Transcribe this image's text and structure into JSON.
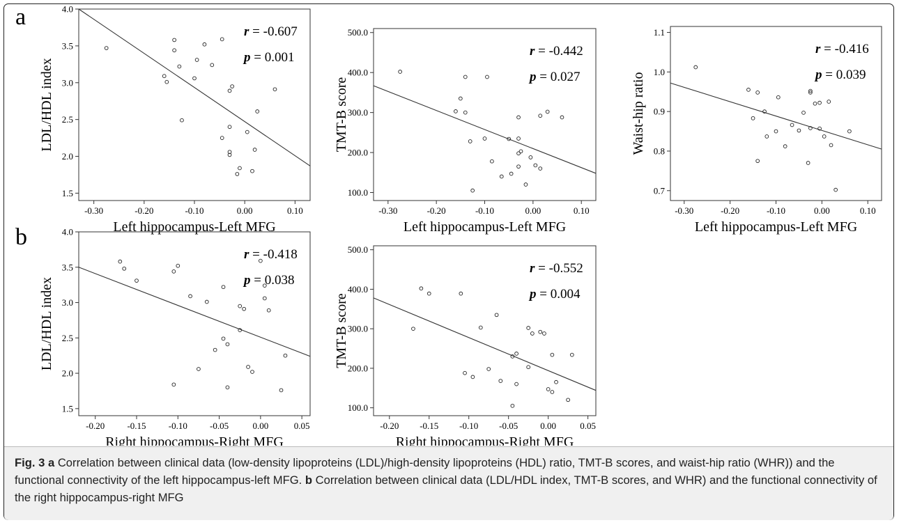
{
  "panels": [
    {
      "letter": "a"
    },
    {
      "letter": "b"
    }
  ],
  "caption": {
    "label": "Fig. 3",
    "a_label": "a",
    "a_text": "Correlation between clinical data (low-density lipoproteins (LDL)/high-density lipoproteins (HDL) ratio, TMT-B scores, and waist-hip ratio (WHR)) and the functional connectivity of the left hippocampus-left MFG.",
    "b_label": "b",
    "b_text": "Correlation between clinical data (LDL/HDL index, TMT-B scores, and WHR) and the functional connectivity of the right hippocampus-right MFG"
  },
  "chart_data": [
    {
      "type": "scatter",
      "xlabel": "Left hippocampus-Left MFG",
      "ylabel": "LDL/HDL index",
      "xlim": [
        -0.33,
        0.13
      ],
      "ylim": [
        1.4,
        4.0
      ],
      "xticks": [
        -0.3,
        -0.2,
        -0.1,
        0.0,
        0.1
      ],
      "xtick_labels": [
        "-0.30",
        "-0.20",
        "-0.10",
        "0.00",
        "0.10"
      ],
      "yticks": [
        1.5,
        2.0,
        2.5,
        3.0,
        3.5,
        4.0
      ],
      "ytick_labels": [
        "1.5",
        "2.0",
        "2.5",
        "3.0",
        "3.5",
        "4.0"
      ],
      "annotations": [
        "r = -0.607",
        "p = 0.001"
      ],
      "fit_line": [
        [
          -0.33,
          4.0
        ],
        [
          0.13,
          1.87
        ]
      ],
      "points": [
        [
          -0.275,
          3.47
        ],
        [
          -0.14,
          3.58
        ],
        [
          -0.14,
          3.44
        ],
        [
          -0.13,
          3.22
        ],
        [
          -0.16,
          3.09
        ],
        [
          -0.155,
          3.01
        ],
        [
          -0.095,
          3.31
        ],
        [
          -0.08,
          3.52
        ],
        [
          -0.045,
          3.59
        ],
        [
          -0.065,
          3.24
        ],
        [
          -0.1,
          3.06
        ],
        [
          -0.03,
          2.89
        ],
        [
          -0.025,
          2.95
        ],
        [
          0.06,
          2.91
        ],
        [
          -0.125,
          2.49
        ],
        [
          0.025,
          2.61
        ],
        [
          -0.03,
          2.4
        ],
        [
          0.005,
          2.33
        ],
        [
          -0.045,
          2.25
        ],
        [
          -0.03,
          2.06
        ],
        [
          -0.03,
          2.02
        ],
        [
          0.02,
          2.09
        ],
        [
          -0.01,
          1.84
        ],
        [
          0.015,
          1.8
        ],
        [
          -0.015,
          1.76
        ]
      ]
    },
    {
      "type": "scatter",
      "xlabel": "Left hippocampus-Left MFG",
      "ylabel": "TMT-B score",
      "xlim": [
        -0.33,
        0.13
      ],
      "ylim": [
        80,
        510
      ],
      "xticks": [
        -0.3,
        -0.2,
        -0.1,
        0.0,
        0.1
      ],
      "xtick_labels": [
        "-0.30",
        "-0.20",
        "-0.10",
        "0.00",
        "0.10"
      ],
      "yticks": [
        100,
        200,
        300,
        400,
        500
      ],
      "ytick_labels": [
        "100.0",
        "200.0",
        "300.0",
        "400.0",
        "500.0"
      ],
      "annotations": [
        "r = -0.442",
        "p = 0.027"
      ],
      "fit_line": [
        [
          -0.33,
          367
        ],
        [
          0.13,
          148
        ]
      ],
      "points": [
        [
          -0.275,
          402
        ],
        [
          -0.14,
          389
        ],
        [
          -0.095,
          389
        ],
        [
          -0.15,
          335
        ],
        [
          -0.16,
          303
        ],
        [
          -0.14,
          300
        ],
        [
          0.03,
          302
        ],
        [
          -0.03,
          288
        ],
        [
          0.015,
          292
        ],
        [
          0.06,
          288
        ],
        [
          -0.03,
          235
        ],
        [
          -0.1,
          235
        ],
        [
          -0.05,
          234
        ],
        [
          -0.13,
          228
        ],
        [
          -0.085,
          178
        ],
        [
          -0.025,
          203
        ],
        [
          -0.03,
          198
        ],
        [
          -0.005,
          188
        ],
        [
          0.005,
          168
        ],
        [
          -0.03,
          165
        ],
        [
          0.015,
          160
        ],
        [
          -0.045,
          147
        ],
        [
          -0.065,
          140
        ],
        [
          -0.015,
          120
        ],
        [
          -0.125,
          105
        ]
      ]
    },
    {
      "type": "scatter",
      "xlabel": "Left hippocampus-Left MFG",
      "ylabel": "Waist-hip ratio",
      "xlim": [
        -0.33,
        0.13
      ],
      "ylim": [
        0.675,
        1.115
      ],
      "xticks": [
        -0.3,
        -0.2,
        -0.1,
        0.0,
        0.1
      ],
      "xtick_labels": [
        "-0.30",
        "-0.20",
        "-0.10",
        "0.00",
        "0.10"
      ],
      "yticks": [
        0.7,
        0.8,
        0.9,
        1.0,
        1.1
      ],
      "ytick_labels": [
        "0.7",
        "0.8",
        "0.9",
        "1.0",
        "1.1"
      ],
      "annotations": [
        "r = -0.416",
        "p = 0.039"
      ],
      "fit_line": [
        [
          -0.33,
          0.972
        ],
        [
          0.13,
          0.805
        ]
      ],
      "points": [
        [
          -0.275,
          1.012
        ],
        [
          -0.16,
          0.955
        ],
        [
          -0.14,
          0.948
        ],
        [
          -0.025,
          0.952
        ],
        [
          -0.025,
          0.948
        ],
        [
          -0.095,
          0.936
        ],
        [
          0.015,
          0.925
        ],
        [
          -0.005,
          0.922
        ],
        [
          -0.015,
          0.92
        ],
        [
          -0.125,
          0.9
        ],
        [
          -0.04,
          0.897
        ],
        [
          -0.15,
          0.883
        ],
        [
          -0.065,
          0.866
        ],
        [
          -0.025,
          0.858
        ],
        [
          -0.005,
          0.857
        ],
        [
          -0.05,
          0.852
        ],
        [
          -0.1,
          0.85
        ],
        [
          0.06,
          0.85
        ],
        [
          -0.12,
          0.837
        ],
        [
          0.005,
          0.837
        ],
        [
          0.02,
          0.815
        ],
        [
          -0.08,
          0.812
        ],
        [
          -0.14,
          0.775
        ],
        [
          -0.03,
          0.77
        ],
        [
          0.03,
          0.702
        ]
      ]
    },
    {
      "type": "scatter",
      "xlabel": "Right hippocampus-Right MFG",
      "ylabel": "LDL/HDL index",
      "xlim": [
        -0.22,
        0.06
      ],
      "ylim": [
        1.4,
        4.0
      ],
      "xticks": [
        -0.2,
        -0.15,
        -0.1,
        -0.05,
        0.0,
        0.05
      ],
      "xtick_labels": [
        "-0.20",
        "-0.15",
        "-0.10",
        "-0.05",
        "0.00",
        "0.05"
      ],
      "yticks": [
        1.5,
        2.0,
        2.5,
        3.0,
        3.5,
        4.0
      ],
      "ytick_labels": [
        "1.5",
        "2.0",
        "2.5",
        "3.0",
        "3.5",
        "4.0"
      ],
      "annotations": [
        "r = -0.418",
        "p = 0.038"
      ],
      "fit_line": [
        [
          -0.22,
          3.5
        ],
        [
          0.06,
          2.24
        ]
      ],
      "points": [
        [
          -0.17,
          3.58
        ],
        [
          -0.165,
          3.48
        ],
        [
          -0.15,
          3.31
        ],
        [
          -0.105,
          3.44
        ],
        [
          -0.1,
          3.52
        ],
        [
          0.0,
          3.59
        ],
        [
          -0.085,
          3.09
        ],
        [
          -0.065,
          3.01
        ],
        [
          -0.045,
          3.22
        ],
        [
          0.005,
          3.24
        ],
        [
          -0.025,
          2.95
        ],
        [
          -0.02,
          2.91
        ],
        [
          0.005,
          3.06
        ],
        [
          0.01,
          2.89
        ],
        [
          -0.045,
          2.49
        ],
        [
          -0.025,
          2.61
        ],
        [
          -0.055,
          2.33
        ],
        [
          -0.04,
          2.41
        ],
        [
          0.03,
          2.25
        ],
        [
          -0.075,
          2.06
        ],
        [
          -0.015,
          2.09
        ],
        [
          -0.01,
          2.02
        ],
        [
          -0.105,
          1.84
        ],
        [
          -0.04,
          1.8
        ],
        [
          0.025,
          1.76
        ]
      ]
    },
    {
      "type": "scatter",
      "xlabel": "Right hippocampus-Right MFG",
      "ylabel": "TMT-B score",
      "xlim": [
        -0.22,
        0.06
      ],
      "ylim": [
        80,
        510
      ],
      "xticks": [
        -0.2,
        -0.15,
        -0.1,
        -0.05,
        0.0,
        0.05
      ],
      "xtick_labels": [
        "-0.20",
        "-0.15",
        "-0.10",
        "-0.05",
        "0.00",
        "0.05"
      ],
      "yticks": [
        100,
        200,
        300,
        400,
        500
      ],
      "ytick_labels": [
        "100.0",
        "200.0",
        "300.0",
        "400.0",
        "500.0"
      ],
      "annotations": [
        "r = -0.552",
        "p = 0.004"
      ],
      "fit_line": [
        [
          -0.22,
          378
        ],
        [
          0.06,
          144
        ]
      ],
      "points": [
        [
          -0.16,
          402
        ],
        [
          -0.15,
          389
        ],
        [
          -0.11,
          389
        ],
        [
          -0.065,
          335
        ],
        [
          -0.17,
          300
        ],
        [
          -0.085,
          303
        ],
        [
          -0.025,
          302
        ],
        [
          -0.02,
          288
        ],
        [
          -0.01,
          292
        ],
        [
          -0.005,
          288
        ],
        [
          -0.04,
          237
        ],
        [
          -0.045,
          230
        ],
        [
          0.005,
          234
        ],
        [
          0.03,
          234
        ],
        [
          -0.025,
          203
        ],
        [
          -0.075,
          198
        ],
        [
          -0.105,
          188
        ],
        [
          -0.095,
          178
        ],
        [
          -0.06,
          168
        ],
        [
          0.01,
          165
        ],
        [
          -0.04,
          160
        ],
        [
          0.0,
          147
        ],
        [
          0.005,
          140
        ],
        [
          0.025,
          120
        ],
        [
          -0.045,
          105
        ]
      ]
    }
  ]
}
